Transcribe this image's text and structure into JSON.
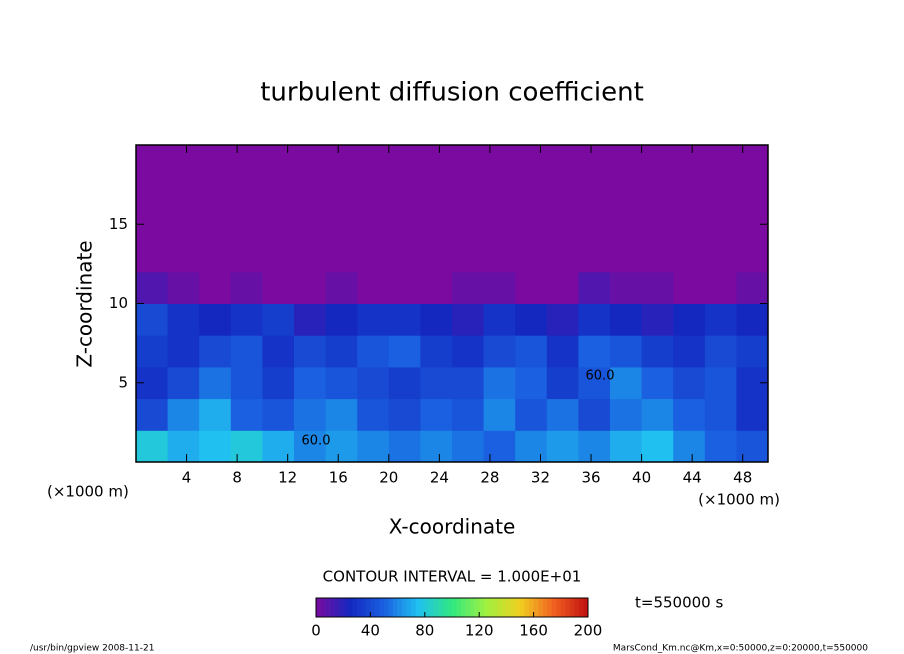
{
  "chart_data": {
    "type": "heatmap",
    "title": "turbulent diffusion coefficient",
    "xlabel": "X-coordinate",
    "ylabel": "Z-coordinate",
    "x_unit_left": "(×1000 m)",
    "x_unit_right": "(×1000 m)",
    "xlim": [
      0,
      50
    ],
    "ylim": [
      0,
      20
    ],
    "xticks": [
      4,
      8,
      12,
      16,
      20,
      24,
      28,
      32,
      36,
      40,
      44,
      48
    ],
    "yticks": [
      5,
      10,
      15
    ],
    "cell_width": 2.5,
    "cell_height": 2,
    "rows": [
      [
        80,
        70,
        75,
        80,
        70,
        60,
        65,
        60,
        55,
        60,
        55,
        50,
        60,
        65,
        60,
        70,
        75,
        60,
        50,
        45
      ],
      [
        40,
        60,
        70,
        50,
        45,
        55,
        60,
        45,
        40,
        50,
        45,
        60,
        45,
        55,
        40,
        55,
        60,
        50,
        45,
        30
      ],
      [
        30,
        40,
        55,
        45,
        35,
        50,
        45,
        40,
        35,
        40,
        40,
        55,
        50,
        35,
        45,
        60,
        50,
        40,
        45,
        30
      ],
      [
        35,
        30,
        40,
        45,
        30,
        40,
        35,
        45,
        50,
        35,
        30,
        40,
        45,
        30,
        50,
        45,
        35,
        30,
        40,
        35
      ],
      [
        40,
        30,
        25,
        30,
        35,
        20,
        25,
        30,
        30,
        25,
        20,
        30,
        25,
        20,
        30,
        25,
        20,
        25,
        30,
        25
      ],
      [
        10,
        5,
        0,
        5,
        0,
        0,
        5,
        0,
        0,
        0,
        5,
        5,
        0,
        0,
        10,
        5,
        5,
        0,
        0,
        5
      ],
      [
        0,
        0,
        0,
        0,
        0,
        0,
        0,
        0,
        0,
        0,
        0,
        0,
        0,
        0,
        0,
        0,
        0,
        0,
        0,
        0
      ],
      [
        0,
        0,
        0,
        0,
        0,
        0,
        0,
        0,
        0,
        0,
        0,
        0,
        0,
        0,
        0,
        0,
        0,
        0,
        0,
        0
      ],
      [
        0,
        0,
        0,
        0,
        0,
        0,
        0,
        0,
        0,
        0,
        0,
        0,
        0,
        0,
        0,
        0,
        0,
        0,
        0,
        0
      ],
      [
        0,
        0,
        0,
        0,
        0,
        0,
        0,
        0,
        0,
        0,
        0,
        0,
        0,
        0,
        0,
        0,
        0,
        0,
        0,
        0
      ]
    ],
    "contour_labels": [
      {
        "value": 60,
        "label": "60.0"
      },
      {
        "value": 60,
        "label": "60.0"
      }
    ],
    "contour_interval": "CONTOUR INTERVAL = 1.000E+01",
    "colorbar": {
      "lim": [
        0,
        200
      ],
      "ticks": [
        0,
        40,
        80,
        120,
        160,
        200
      ]
    },
    "colormap": [
      "#7a0aa0",
      "#1428c0",
      "#1a60e0",
      "#20c0f0",
      "#30e880",
      "#a0f040",
      "#f0d020",
      "#f06020",
      "#c01010"
    ],
    "time_label": "t=550000 s",
    "footer_left": "/usr/bin/gpview  2008-11-21",
    "footer_right": "MarsCond_Km.nc@Km,x=0:50000,z=0:20000,t=550000"
  }
}
